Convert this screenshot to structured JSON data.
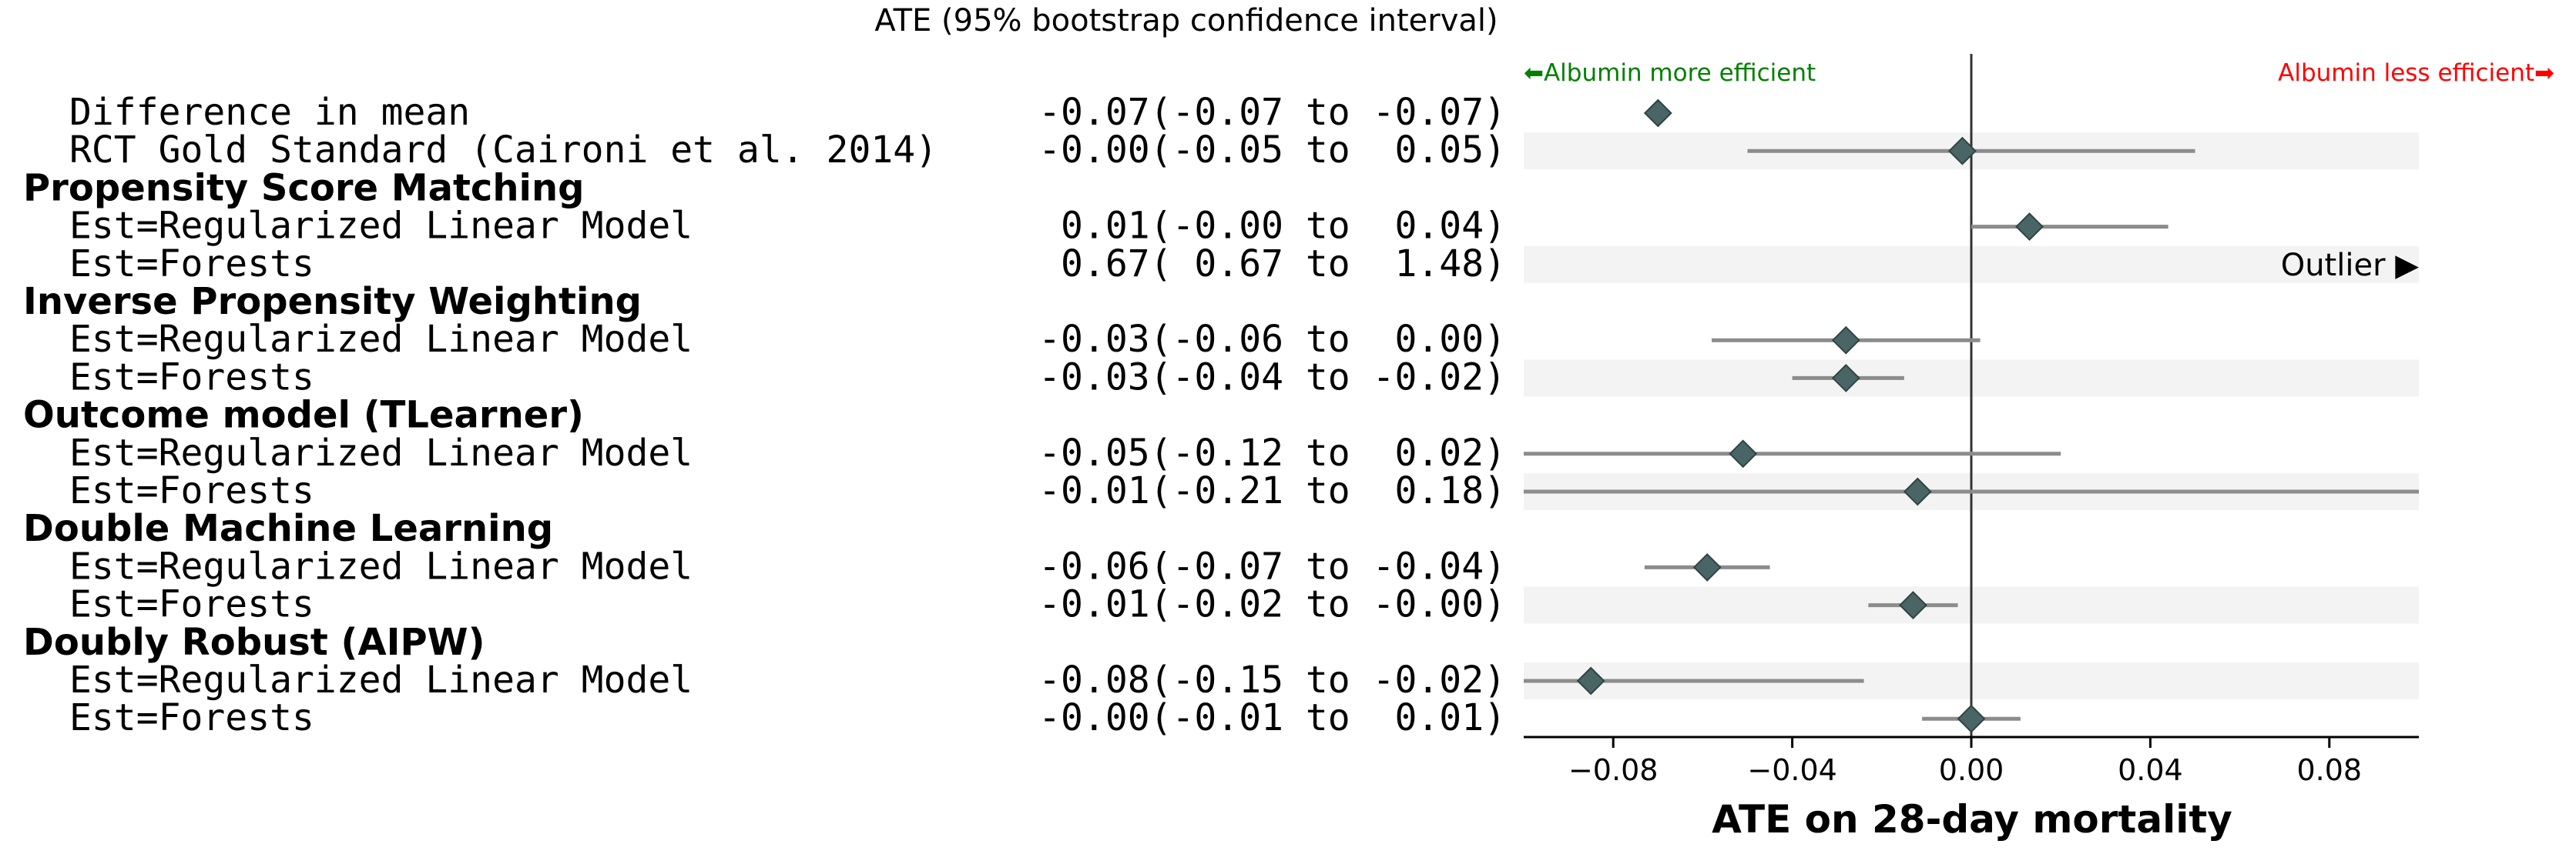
{
  "chart_data": {
    "type": "forest",
    "title": "",
    "column_header": "ATE (95% bootstrap confidence interval)",
    "xlabel": "ATE on 28-day mortality",
    "xlim": [
      -0.1,
      0.1
    ],
    "xticks": [
      {
        "value": -0.08,
        "label": "−0.08"
      },
      {
        "value": -0.04,
        "label": "−0.04"
      },
      {
        "value": 0.0,
        "label": "0.00"
      },
      {
        "value": 0.04,
        "label": "0.04"
      },
      {
        "value": 0.08,
        "label": "0.08"
      }
    ],
    "reference_line": 0.0,
    "left_annotation": {
      "text": "⬅Albumin more efficient",
      "color": "#008000"
    },
    "right_annotation": {
      "text": "Albumin less efficient➡",
      "color": "#ff0000"
    },
    "outlier_label": "Outlier ▶",
    "colors": {
      "marker": "#4a6565",
      "interval": "#8c8c8c",
      "band": "#f3f3f3",
      "axis": "#000000"
    },
    "rows": [
      {
        "kind": "item",
        "label": "Difference in mean",
        "text": "-0.07(-0.07 to -0.07)",
        "estimate": -0.07,
        "lower": -0.07,
        "upper": -0.07,
        "band": false
      },
      {
        "kind": "item",
        "label": "RCT Gold Standard (Caironi et al. 2014)",
        "text": "-0.00(-0.05 to  0.05)",
        "estimate": -0.002,
        "lower": -0.05,
        "upper": 0.05,
        "band": true
      },
      {
        "kind": "group",
        "label": "Propensity Score Matching"
      },
      {
        "kind": "item",
        "label": "Est=Regularized Linear Model",
        "text": " 0.01(-0.00 to  0.04)",
        "estimate": 0.013,
        "lower": 0.0,
        "upper": 0.044,
        "band": false
      },
      {
        "kind": "item",
        "label": "Est=Forests",
        "text": " 0.67( 0.67 to  1.48)",
        "estimate": 0.67,
        "lower": 0.67,
        "upper": 1.48,
        "band": true,
        "outlier": true
      },
      {
        "kind": "group",
        "label": "Inverse Propensity Weighting"
      },
      {
        "kind": "item",
        "label": "Est=Regularized Linear Model",
        "text": "-0.03(-0.06 to  0.00)",
        "estimate": -0.028,
        "lower": -0.058,
        "upper": 0.002,
        "band": false
      },
      {
        "kind": "item",
        "label": "Est=Forests",
        "text": "-0.03(-0.04 to -0.02)",
        "estimate": -0.028,
        "lower": -0.04,
        "upper": -0.015,
        "band": true
      },
      {
        "kind": "group",
        "label": "Outcome model (TLearner)"
      },
      {
        "kind": "item",
        "label": "Est=Regularized Linear Model",
        "text": "-0.05(-0.12 to  0.02)",
        "estimate": -0.051,
        "lower": -0.12,
        "upper": 0.02,
        "band": false
      },
      {
        "kind": "item",
        "label": "Est=Forests",
        "text": "-0.01(-0.21 to  0.18)",
        "estimate": -0.012,
        "lower": -0.21,
        "upper": 0.18,
        "band": true
      },
      {
        "kind": "group",
        "label": "Double Machine Learning"
      },
      {
        "kind": "item",
        "label": "Est=Regularized Linear Model",
        "text": "-0.06(-0.07 to -0.04)",
        "estimate": -0.059,
        "lower": -0.073,
        "upper": -0.045,
        "band": false
      },
      {
        "kind": "item",
        "label": "Est=Forests",
        "text": "-0.01(-0.02 to -0.00)",
        "estimate": -0.013,
        "lower": -0.023,
        "upper": -0.003,
        "band": true
      },
      {
        "kind": "group",
        "label": "Doubly Robust (AIPW)"
      },
      {
        "kind": "item",
        "label": "Est=Regularized Linear Model",
        "text": "-0.08(-0.15 to -0.02)",
        "estimate": -0.085,
        "lower": -0.15,
        "upper": -0.024,
        "band": true
      },
      {
        "kind": "item",
        "label": "Est=Forests",
        "text": "-0.00(-0.01 to  0.01)",
        "estimate": 0.0,
        "lower": -0.011,
        "upper": 0.011,
        "band": false
      }
    ]
  }
}
